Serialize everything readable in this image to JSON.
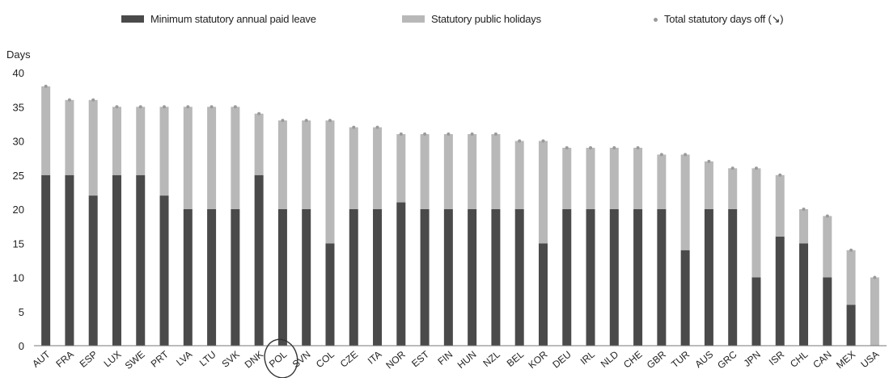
{
  "colors": {
    "annual_leave": "#4a4a4a",
    "public_holidays": "#b8b8b8",
    "total_marker": "#9a9a9a",
    "axis": "#777777",
    "text": "#222222"
  },
  "chart_data": {
    "type": "bar",
    "stacked": true,
    "title": "",
    "xlabel": "",
    "ylabel": "Days",
    "ylim": [
      0,
      40
    ],
    "yticks": [
      0,
      5,
      10,
      15,
      20,
      25,
      30,
      35,
      40
    ],
    "legend_position": "top",
    "grid": false,
    "categories": [
      "AUT",
      "FRA",
      "ESP",
      "LUX",
      "SWE",
      "PRT",
      "LVA",
      "LTU",
      "SVK",
      "DNK",
      "POL",
      "SVN",
      "COL",
      "CZE",
      "ITA",
      "NOR",
      "EST",
      "FIN",
      "HUN",
      "NZL",
      "BEL",
      "KOR",
      "DEU",
      "IRL",
      "NLD",
      "CHE",
      "GBR",
      "TUR",
      "AUS",
      "GRC",
      "JPN",
      "ISR",
      "CHL",
      "CAN",
      "MEX",
      "USA"
    ],
    "highlighted_category": "POL",
    "series": [
      {
        "name": "Minimum statutory annual paid leave",
        "values": [
          25,
          25,
          22,
          25,
          25,
          22,
          20,
          20,
          20,
          25,
          20,
          20,
          15,
          20,
          20,
          21,
          20,
          20,
          20,
          20,
          20,
          15,
          20,
          20,
          20,
          20,
          20,
          14,
          20,
          20,
          10,
          16,
          15,
          10,
          6,
          0
        ]
      },
      {
        "name": "Statutory public holidays",
        "values": [
          13,
          11,
          14,
          10,
          10,
          13,
          15,
          15,
          15,
          9,
          13,
          13,
          18,
          12,
          12,
          10,
          11,
          11,
          11,
          11,
          10,
          15,
          9,
          9,
          9,
          9,
          8,
          14,
          7,
          6,
          16,
          9,
          5,
          9,
          8,
          10
        ]
      }
    ],
    "total": {
      "name": "Total statutory days off (↘)",
      "values": [
        38,
        36,
        36,
        35,
        35,
        35,
        35,
        35,
        35,
        34,
        33,
        33,
        33,
        32,
        32,
        31,
        31,
        31,
        31,
        31,
        30,
        30,
        29,
        29,
        29,
        29,
        28,
        28,
        27,
        26,
        26,
        25,
        20,
        19,
        14,
        10
      ]
    }
  }
}
